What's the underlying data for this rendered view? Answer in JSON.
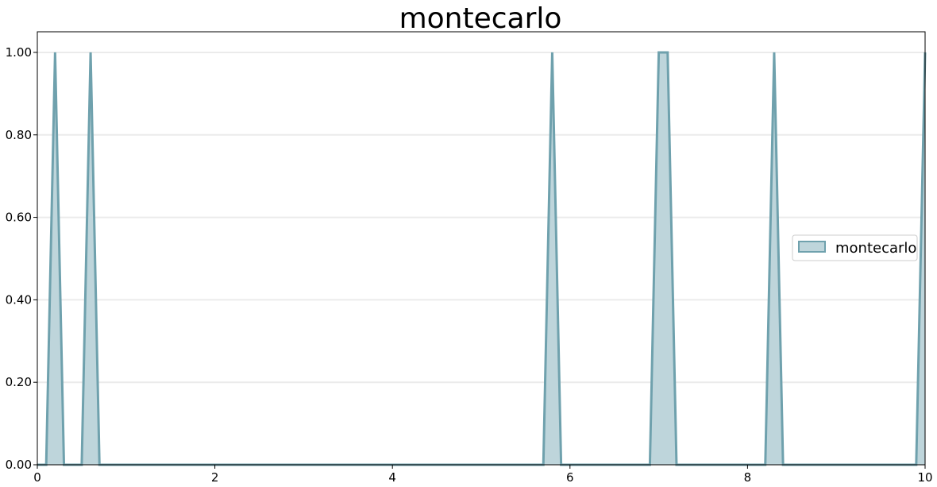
{
  "chart_data": {
    "type": "area",
    "title": "montecarlo",
    "xlabel": "",
    "ylabel": "",
    "xlim": [
      0,
      10
    ],
    "ylim": [
      0,
      1.05
    ],
    "x_ticks": [
      "0",
      "2",
      "4",
      "6",
      "8",
      "10"
    ],
    "y_ticks": [
      "0.00",
      "0.20",
      "0.40",
      "0.60",
      "0.80",
      "1.00"
    ],
    "grid": "horizontal",
    "legend_position": "center-right",
    "series": [
      {
        "name": "montecarlo",
        "color": "#6fa1ad",
        "fill_color": "#bed5db",
        "x": [
          0,
          0.1,
          0.2,
          0.3,
          0.5,
          0.6,
          0.7,
          5.7,
          5.8,
          5.9,
          6.9,
          7.0,
          7.1,
          7.2,
          8.2,
          8.3,
          8.4,
          9.9,
          10.0
        ],
        "y": [
          0,
          0,
          1,
          0,
          0,
          1,
          0,
          0,
          1,
          0,
          0,
          1,
          1,
          0,
          0,
          1,
          0,
          0,
          1
        ]
      }
    ]
  }
}
